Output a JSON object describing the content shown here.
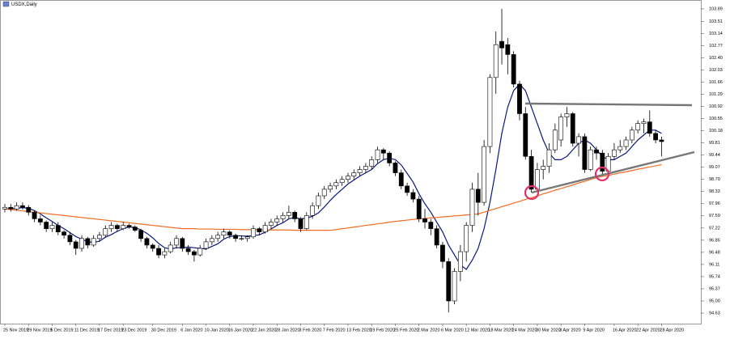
{
  "chart_data": {
    "type": "candlestick",
    "title": "USDX,Daily",
    "categories": [
      "25 Nov 2019",
      null,
      null,
      null,
      "29 Nov 2019",
      null,
      null,
      null,
      "5 Dec 2019",
      null,
      null,
      null,
      "11 Dec 2019",
      null,
      null,
      null,
      "17 Dec 2019",
      null,
      null,
      null,
      "23 Dec 2019",
      null,
      null,
      null,
      null,
      "30 Dec 2019",
      null,
      null,
      null,
      null,
      "6 Jan 2020",
      null,
      null,
      null,
      "10 Jan 2020",
      null,
      null,
      null,
      "16 Jan 2020",
      null,
      null,
      null,
      "22 Jan 2020",
      null,
      null,
      null,
      "28 Jan 2020",
      null,
      null,
      null,
      "3 Feb 2020",
      null,
      null,
      null,
      "7 Feb 2020",
      null,
      null,
      null,
      "13 Feb 2020",
      null,
      null,
      null,
      "19 Feb 2020",
      null,
      null,
      null,
      "25 Feb 2020",
      null,
      null,
      null,
      "2 Mar 2020",
      null,
      null,
      null,
      "6 Mar 2020",
      null,
      null,
      null,
      "12 Mar 2020",
      null,
      null,
      null,
      "18 Mar 2020",
      null,
      null,
      null,
      "24 Mar 2020",
      null,
      null,
      null,
      "30 Mar 2020",
      null,
      null,
      null,
      "3 Apr 2020",
      null,
      null,
      null,
      "9 Apr 2020",
      null,
      null,
      null,
      null,
      "16 Apr 2020",
      null,
      null,
      null,
      "22 Apr 2020",
      null,
      null,
      null,
      "28 Apr 2020"
    ],
    "open": [
      97.8,
      97.85,
      97.8,
      97.9,
      97.85,
      97.7,
      97.5,
      97.4,
      97.2,
      97.3,
      97.1,
      97.0,
      96.8,
      96.6,
      96.9,
      96.7,
      96.9,
      97.0,
      97.2,
      97.3,
      97.2,
      97.3,
      97.25,
      97.15,
      96.9,
      96.7,
      96.6,
      96.4,
      96.5,
      96.7,
      96.9,
      96.6,
      96.5,
      96.4,
      96.6,
      96.8,
      96.9,
      97.0,
      97.1,
      97.0,
      96.9,
      96.9,
      96.95,
      97.2,
      97.1,
      97.3,
      97.4,
      97.5,
      97.6,
      97.7,
      97.5,
      97.2,
      97.6,
      97.9,
      98.2,
      98.4,
      98.5,
      98.6,
      98.7,
      98.8,
      98.9,
      99.0,
      99.1,
      99.3,
      99.6,
      99.5,
      99.2,
      98.9,
      98.5,
      98.3,
      98.1,
      97.5,
      97.4,
      97.2,
      96.7,
      96.2,
      95.0,
      95.9,
      96.5,
      97.3,
      98.4,
      98.0,
      99.7,
      101.8,
      102.9,
      102.8,
      102.5,
      101.6,
      100.7,
      99.4,
      98.4,
      99.0,
      99.1,
      99.6,
      99.9,
      100.6,
      100.7,
      99.8,
      100.0,
      99.0,
      99.6,
      99.5,
      98.95,
      99.4,
      99.6,
      99.7,
      99.9,
      100.2,
      100.4,
      100.45,
      100.1,
      99.9
    ],
    "high": [
      97.95,
      97.95,
      98.0,
      98.0,
      97.92,
      97.75,
      97.6,
      97.45,
      97.4,
      97.4,
      97.15,
      97.1,
      96.85,
      97.0,
      96.95,
      97.0,
      97.1,
      97.3,
      97.4,
      97.35,
      97.4,
      97.35,
      97.3,
      97.2,
      96.95,
      96.75,
      96.7,
      96.6,
      96.8,
      97.0,
      96.95,
      96.7,
      96.55,
      96.7,
      96.9,
      97.0,
      97.1,
      97.2,
      97.15,
      97.05,
      97.0,
      97.0,
      97.3,
      97.25,
      97.4,
      97.5,
      97.6,
      97.7,
      97.9,
      97.75,
      97.55,
      97.7,
      98.0,
      98.3,
      98.5,
      98.6,
      98.7,
      98.8,
      98.9,
      99.0,
      99.1,
      99.2,
      99.4,
      99.7,
      99.65,
      99.55,
      99.25,
      99.0,
      98.6,
      98.4,
      98.2,
      97.8,
      97.5,
      97.3,
      96.8,
      96.3,
      96.0,
      96.7,
      97.4,
      98.6,
      98.9,
      99.9,
      101.9,
      103.2,
      103.89,
      103.0,
      102.6,
      101.7,
      100.9,
      99.6,
      99.2,
      99.3,
      99.8,
      100.4,
      100.7,
      100.9,
      100.75,
      100.1,
      100.1,
      99.7,
      99.7,
      99.6,
      99.5,
      99.8,
      99.9,
      100.0,
      100.3,
      100.5,
      100.55,
      100.8,
      100.2,
      100.0
    ],
    "low": [
      97.7,
      97.72,
      97.75,
      97.78,
      97.6,
      97.4,
      97.3,
      97.1,
      97.1,
      97.0,
      96.9,
      96.7,
      96.4,
      96.5,
      96.6,
      96.65,
      96.8,
      96.95,
      97.1,
      97.1,
      97.15,
      97.2,
      97.1,
      96.8,
      96.6,
      96.5,
      96.3,
      96.3,
      96.45,
      96.6,
      96.5,
      96.4,
      96.2,
      96.35,
      96.55,
      96.7,
      96.8,
      96.9,
      96.9,
      96.8,
      96.85,
      96.8,
      96.9,
      97.0,
      97.05,
      97.2,
      97.3,
      97.4,
      97.5,
      97.4,
      97.1,
      97.15,
      97.5,
      97.8,
      98.1,
      98.3,
      98.4,
      98.5,
      98.6,
      98.7,
      98.8,
      98.9,
      99.0,
      99.2,
      99.3,
      99.1,
      98.8,
      98.4,
      98.2,
      98.0,
      97.4,
      97.2,
      97.0,
      96.6,
      96.0,
      94.65,
      94.9,
      95.6,
      96.2,
      97.1,
      97.6,
      97.9,
      99.5,
      101.3,
      102.2,
      101.9,
      101.5,
      100.5,
      99.3,
      98.3,
      98.35,
      98.7,
      98.9,
      99.5,
      99.7,
      100.3,
      99.7,
      99.4,
      98.9,
      98.95,
      99.3,
      98.85,
      98.9,
      99.3,
      99.5,
      99.6,
      99.8,
      100.1,
      100.1,
      100.0,
      99.8,
      99.4
    ],
    "close": [
      97.85,
      97.8,
      97.9,
      97.85,
      97.7,
      97.5,
      97.4,
      97.2,
      97.3,
      97.1,
      97.0,
      96.8,
      96.6,
      96.9,
      96.7,
      96.9,
      97.0,
      97.2,
      97.3,
      97.2,
      97.3,
      97.25,
      97.15,
      96.9,
      96.7,
      96.6,
      96.4,
      96.5,
      96.7,
      96.9,
      96.6,
      96.5,
      96.4,
      96.6,
      96.8,
      96.9,
      97.0,
      97.1,
      97.0,
      96.9,
      96.9,
      96.95,
      97.2,
      97.1,
      97.3,
      97.4,
      97.5,
      97.6,
      97.7,
      97.5,
      97.2,
      97.6,
      97.9,
      98.2,
      98.4,
      98.5,
      98.6,
      98.7,
      98.8,
      98.9,
      99.0,
      99.1,
      99.3,
      99.6,
      99.5,
      99.2,
      98.9,
      98.5,
      98.3,
      98.1,
      97.5,
      97.4,
      97.2,
      96.7,
      96.2,
      95.0,
      95.9,
      96.5,
      97.3,
      98.4,
      98.0,
      99.7,
      101.8,
      102.8,
      102.7,
      102.5,
      101.6,
      100.7,
      99.4,
      98.4,
      99.0,
      99.1,
      99.6,
      100.2,
      100.6,
      100.7,
      99.8,
      100.0,
      99.0,
      99.6,
      99.5,
      98.95,
      99.4,
      99.6,
      99.7,
      99.9,
      100.2,
      100.4,
      100.45,
      100.1,
      99.9,
      99.85
    ],
    "up_color": "#ffffff",
    "down_color": "#000000",
    "moving_averages": [
      {
        "color": "#0b1780",
        "values": [
          97.8,
          97.8,
          97.82,
          97.84,
          97.82,
          97.75,
          97.65,
          97.53,
          97.42,
          97.3,
          97.2,
          97.08,
          96.96,
          96.88,
          96.8,
          96.78,
          96.82,
          96.94,
          97.02,
          97.12,
          97.2,
          97.25,
          97.24,
          97.16,
          97.06,
          96.92,
          96.75,
          96.62,
          96.58,
          96.62,
          96.62,
          96.64,
          96.62,
          96.6,
          96.58,
          96.66,
          96.74,
          96.88,
          96.96,
          96.98,
          96.98,
          96.97,
          96.99,
          97.01,
          97.09,
          97.19,
          97.3,
          97.38,
          97.5,
          97.54,
          97.5,
          97.52,
          97.58,
          97.68,
          97.86,
          98.06,
          98.24,
          98.4,
          98.56,
          98.68,
          98.8,
          98.9,
          99.0,
          99.18,
          99.3,
          99.34,
          99.3,
          99.14,
          98.88,
          98.62,
          98.26,
          97.96,
          97.7,
          97.4,
          97.1,
          96.7,
          96.4,
          96.1,
          95.96,
          96.24,
          96.6,
          97.2,
          98.0,
          99.0,
          100.1,
          100.9,
          101.4,
          101.6,
          101.4,
          100.9,
          100.4,
          99.9,
          99.5,
          99.3,
          99.3,
          99.4,
          99.6,
          99.8,
          99.9,
          99.8,
          99.6,
          99.4,
          99.3,
          99.3,
          99.4,
          99.5,
          99.7,
          99.9,
          100.05,
          100.2,
          100.2,
          100.1
        ]
      },
      {
        "color": "#f26b21",
        "values": [
          97.8,
          97.78,
          97.76,
          97.74,
          97.72,
          97.7,
          97.68,
          97.66,
          97.64,
          97.62,
          97.6,
          97.58,
          97.56,
          97.54,
          97.52,
          97.5,
          97.48,
          97.46,
          97.44,
          97.42,
          97.4,
          97.38,
          97.36,
          97.34,
          97.32,
          97.3,
          97.28,
          97.26,
          97.24,
          97.22,
          97.2,
          97.2,
          97.2,
          97.19,
          97.19,
          97.19,
          97.18,
          97.18,
          97.18,
          97.18,
          97.17,
          97.17,
          97.17,
          97.17,
          97.16,
          97.16,
          97.16,
          97.16,
          97.16,
          97.15,
          97.15,
          97.15,
          97.15,
          97.15,
          97.15,
          97.15,
          97.17,
          97.2,
          97.22,
          97.25,
          97.27,
          97.3,
          97.32,
          97.35,
          97.37,
          97.4,
          97.42,
          97.44,
          97.46,
          97.48,
          97.5,
          97.51,
          97.53,
          97.54,
          97.56,
          97.57,
          97.59,
          97.6,
          97.62,
          97.63,
          97.65,
          97.7,
          97.76,
          97.81,
          97.87,
          97.92,
          97.98,
          98.03,
          98.09,
          98.14,
          98.2,
          98.26,
          98.31,
          98.37,
          98.42,
          98.48,
          98.53,
          98.59,
          98.64,
          98.7,
          98.75,
          98.79,
          98.82,
          98.86,
          98.9,
          98.93,
          98.97,
          99.01,
          99.04,
          99.08,
          99.11,
          99.15
        ]
      }
    ],
    "ylim": [
      94.31,
      104.11
    ],
    "yticks": [
      94.63,
      {
        "value": 95,
        "label": "95.00"
      },
      95.37,
      95.74,
      96.11,
      96.48,
      96.85,
      97.22,
      97.59,
      97.96,
      98.33,
      {
        "value": 98.7,
        "label": "98.70"
      },
      99.07,
      99.44,
      99.81,
      100.18,
      100.55,
      100.92,
      101.29,
      101.66,
      102.03,
      {
        "value": 102.4,
        "label": "102.40"
      },
      102.77,
      103.14,
      103.51,
      103.89
    ]
  }
}
